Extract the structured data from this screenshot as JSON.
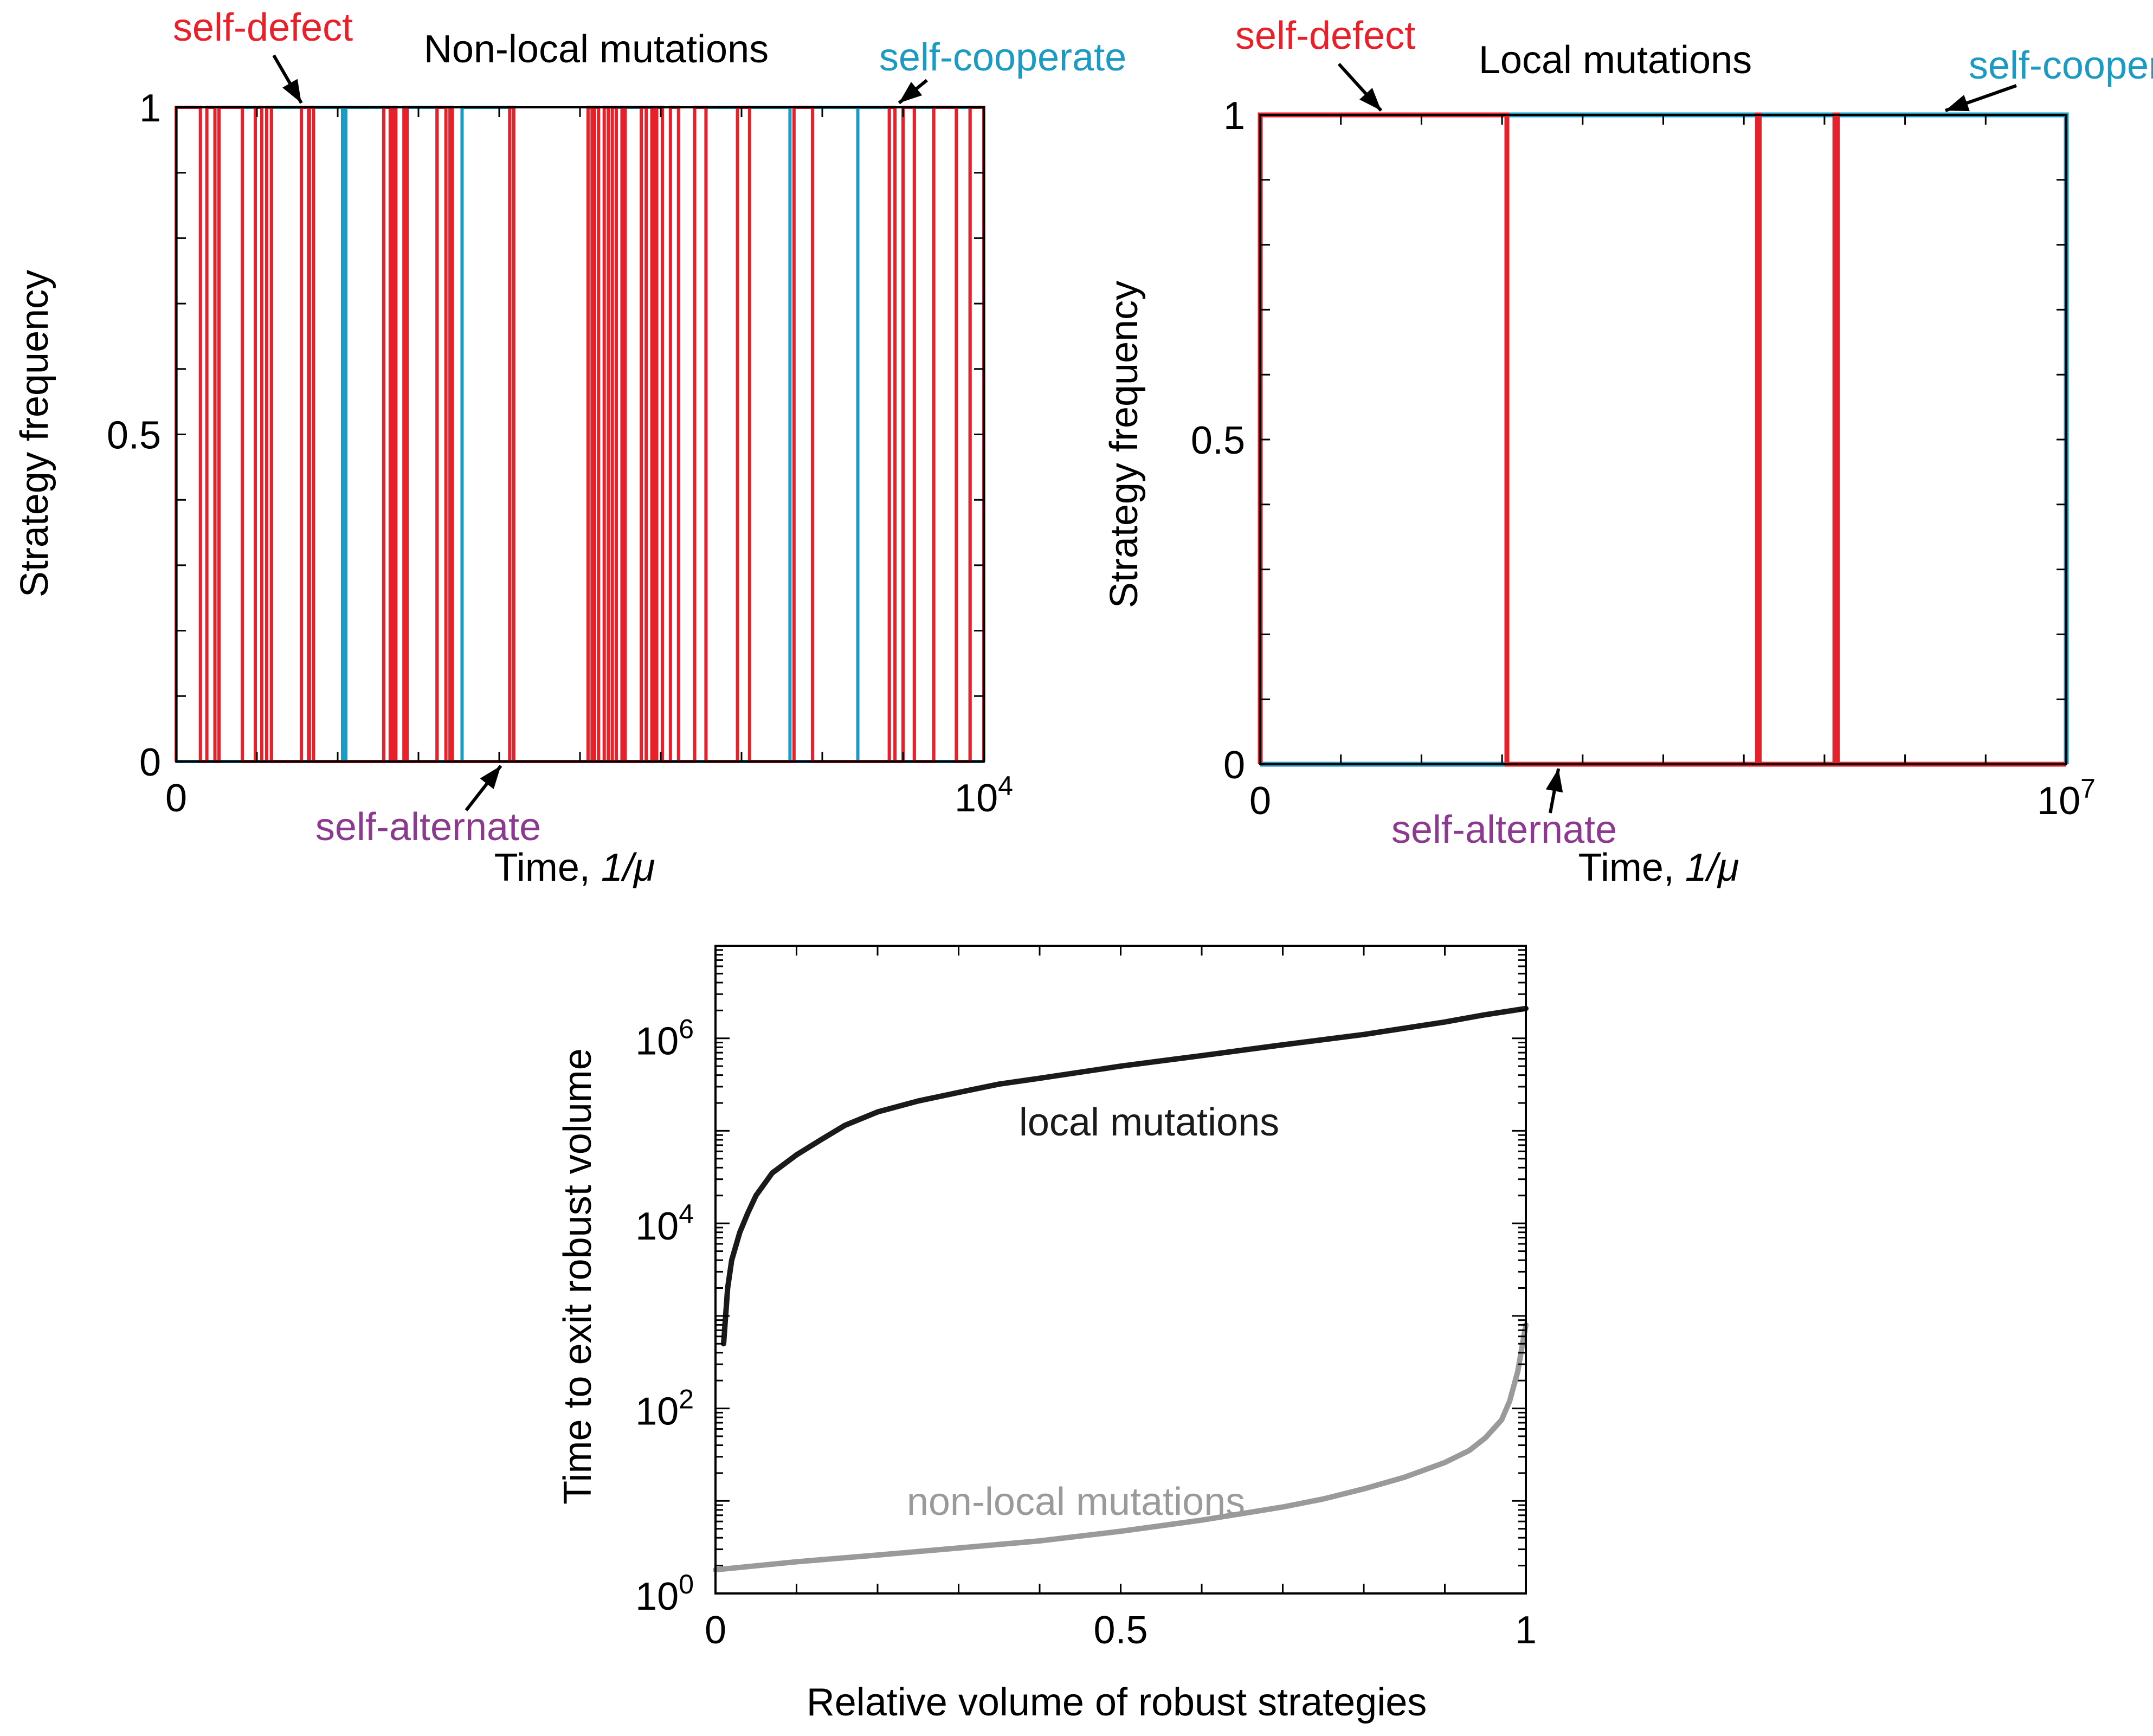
{
  "colors": {
    "defect": "#e8202a",
    "cooperate": "#1b9bc4",
    "alternate": "#8b3a8f",
    "local": "#1a1a1a",
    "nonlocal": "#9a9a9a",
    "axis": "#000000"
  },
  "chart_data": [
    {
      "id": "nonlocal",
      "type": "line",
      "title": "Non-local mutations",
      "xlabel": "Time, ",
      "xlabel_unit": "1/μ",
      "ylabel": "Strategy frequency",
      "xlim": [
        0,
        10000
      ],
      "ylim": [
        0,
        1
      ],
      "x_tick_labels": [
        {
          "value": 0,
          "label": "0"
        },
        {
          "value": 10000,
          "label": "10",
          "sup": "4"
        }
      ],
      "y_tick_labels": [
        {
          "value": 0,
          "label": "0"
        },
        {
          "value": 0.5,
          "label": "0.5"
        },
        {
          "value": 1,
          "label": "1"
        }
      ],
      "annotations": [
        {
          "text": "self-defect",
          "color": "defect",
          "points_at": [
            1550,
            1
          ]
        },
        {
          "text": "self-cooperate",
          "color": "cooperate",
          "points_at": [
            8950,
            1
          ]
        },
        {
          "text": "self-alternate",
          "color": "alternate",
          "points_at": [
            4020,
            0
          ]
        }
      ],
      "series": [
        {
          "name": "self-defect",
          "color": "defect",
          "intervals": [
            [
              0,
              300
            ],
            [
              380,
              480
            ],
            [
              530,
              820
            ],
            [
              980,
              1060
            ],
            [
              1120,
              1180
            ],
            [
              1550,
              1640
            ],
            [
              1650,
              1700
            ],
            [
              2570,
              2650
            ],
            [
              2680,
              2720
            ],
            [
              2820,
              2860
            ],
            [
              3230,
              3340
            ],
            [
              3390,
              3420
            ],
            [
              4130,
              4180
            ],
            [
              5100,
              5150
            ],
            [
              5180,
              5230
            ],
            [
              5300,
              5350
            ],
            [
              5400,
              5450
            ],
            [
              5520,
              5560
            ],
            [
              5760,
              5820
            ],
            [
              5890,
              5930
            ],
            [
              5950,
              6020
            ],
            [
              6120,
              6220
            ],
            [
              6420,
              6560
            ],
            [
              6950,
              7100
            ],
            [
              7650,
              7880
            ],
            [
              8830,
              8900
            ],
            [
              9000,
              9140
            ],
            [
              9380,
              9660
            ],
            [
              9830,
              10000
            ]
          ]
        },
        {
          "name": "self-cooperate",
          "color": "cooperate",
          "intervals": [
            [
              820,
              980
            ],
            [
              1180,
              1550
            ],
            [
              1700,
              2060
            ],
            [
              2100,
              2570
            ],
            [
              2860,
              3230
            ],
            [
              3540,
              4130
            ],
            [
              5150,
              5180
            ],
            [
              5450,
              5520
            ],
            [
              5560,
              5760
            ],
            [
              5820,
              5890
            ],
            [
              6560,
              6950
            ],
            [
              7100,
              7600
            ],
            [
              7880,
              8440
            ],
            [
              8440,
              8830
            ],
            [
              9140,
              9380
            ],
            [
              9660,
              9830
            ]
          ]
        },
        {
          "name": "self-alternate",
          "color": "alternate",
          "intervals": []
        }
      ]
    },
    {
      "id": "local",
      "type": "line",
      "title": "Local mutations",
      "xlabel": "Time, ",
      "xlabel_unit": "1/μ",
      "ylabel": "Strategy frequency",
      "xlim": [
        0,
        10000000
      ],
      "ylim": [
        0,
        1
      ],
      "x_tick_labels": [
        {
          "value": 0,
          "label": "0"
        },
        {
          "value": 10000000,
          "label": "10",
          "sup": "7"
        }
      ],
      "y_tick_labels": [
        {
          "value": 0,
          "label": "0"
        },
        {
          "value": 0.5,
          "label": "0.5"
        },
        {
          "value": 1,
          "label": "1"
        }
      ],
      "annotations": [
        {
          "text": "self-defect",
          "color": "defect",
          "points_at": [
            1500000,
            1
          ]
        },
        {
          "text": "self-cooperate",
          "color": "cooperate",
          "points_at": [
            8500000,
            1
          ]
        },
        {
          "text": "self-alternate",
          "color": "alternate",
          "points_at": [
            3700000,
            0
          ]
        }
      ],
      "series": [
        {
          "name": "self-defect",
          "color": "defect",
          "intervals": [
            [
              0,
              3060000
            ],
            [
              6170000,
              6190000
            ],
            [
              7130000,
              7160000
            ]
          ]
        },
        {
          "name": "self-cooperate",
          "color": "cooperate",
          "intervals": [
            [
              3060000,
              6170000
            ],
            [
              6190000,
              7130000
            ],
            [
              7160000,
              10000000
            ]
          ]
        },
        {
          "name": "self-alternate",
          "color": "alternate",
          "intervals": []
        }
      ]
    },
    {
      "id": "robust",
      "type": "line",
      "title": "",
      "xlabel": "Relative volume of robust strategies",
      "ylabel": "Time to exit robust volume",
      "xlim": [
        0,
        1
      ],
      "ylim": [
        1,
        10000000
      ],
      "yscale": "log",
      "x_tick_labels": [
        {
          "value": 0,
          "label": "0"
        },
        {
          "value": 0.5,
          "label": "0.5"
        },
        {
          "value": 1,
          "label": "1"
        }
      ],
      "y_tick_labels": [
        {
          "value": 1,
          "label": "10",
          "sup": "0"
        },
        {
          "value": 100,
          "label": "10",
          "sup": "2"
        },
        {
          "value": 10000,
          "label": "10",
          "sup": "4"
        },
        {
          "value": 1000000,
          "label": "10",
          "sup": "6"
        }
      ],
      "series": [
        {
          "name": "local mutations",
          "color": "local",
          "x": [
            0.01,
            0.015,
            0.02,
            0.03,
            0.04,
            0.05,
            0.07,
            0.1,
            0.13,
            0.16,
            0.2,
            0.25,
            0.3,
            0.35,
            0.4,
            0.5,
            0.6,
            0.7,
            0.8,
            0.9,
            0.95,
            1.0
          ],
          "y": [
            500,
            2000,
            4000,
            8000,
            13000,
            20000,
            35000,
            55000,
            80000,
            115000,
            160000,
            210000,
            260000,
            320000,
            370000,
            500000,
            650000,
            850000,
            1100000,
            1500000,
            1800000,
            2100000
          ]
        },
        {
          "name": "non-local mutations",
          "color": "nonlocal",
          "x": [
            0.0,
            0.1,
            0.2,
            0.3,
            0.4,
            0.5,
            0.6,
            0.7,
            0.75,
            0.8,
            0.85,
            0.9,
            0.93,
            0.95,
            0.97,
            0.98,
            0.99,
            1.0
          ],
          "y": [
            1.8,
            2.2,
            2.6,
            3.1,
            3.7,
            4.7,
            6.2,
            8.6,
            10.5,
            13.5,
            18,
            26,
            35,
            48,
            75,
            120,
            250,
            800
          ]
        }
      ],
      "annotations": [
        {
          "text": "local mutations",
          "color": "local"
        },
        {
          "text": "non-local mutations",
          "color": "nonlocal"
        }
      ]
    }
  ]
}
